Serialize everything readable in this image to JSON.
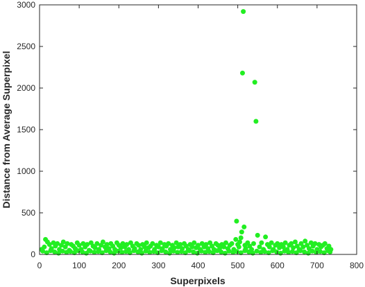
{
  "chart_data": {
    "type": "scatter",
    "xlabel": "Superpixels",
    "ylabel": "Distance from Average Superpixel",
    "xlim": [
      0,
      800
    ],
    "ylim": [
      0,
      3000
    ],
    "x_ticks": [
      "0",
      "100",
      "200",
      "300",
      "400",
      "500",
      "600",
      "700",
      "800"
    ],
    "y_ticks": [
      "0",
      "500",
      "1000",
      "1500",
      "2000",
      "2500",
      "3000"
    ],
    "marker_color": "#22ee22",
    "grid": false,
    "box": true,
    "series": [
      {
        "points": [
          [
            5,
            60
          ],
          [
            12,
            90
          ],
          [
            15,
            180
          ],
          [
            20,
            150
          ],
          [
            25,
            120
          ],
          [
            30,
            70
          ],
          [
            35,
            140
          ],
          [
            40,
            100
          ],
          [
            45,
            130
          ],
          [
            50,
            60
          ],
          [
            55,
            110
          ],
          [
            60,
            150
          ],
          [
            65,
            90
          ],
          [
            70,
            130
          ],
          [
            75,
            50
          ],
          [
            80,
            120
          ],
          [
            85,
            100
          ],
          [
            90,
            70
          ],
          [
            95,
            140
          ],
          [
            100,
            110
          ],
          [
            105,
            60
          ],
          [
            110,
            130
          ],
          [
            115,
            90
          ],
          [
            120,
            120
          ],
          [
            125,
            50
          ],
          [
            130,
            140
          ],
          [
            135,
            100
          ],
          [
            140,
            80
          ],
          [
            145,
            130
          ],
          [
            150,
            60
          ],
          [
            155,
            110
          ],
          [
            160,
            150
          ],
          [
            165,
            90
          ],
          [
            170,
            120
          ],
          [
            175,
            70
          ],
          [
            180,
            130
          ],
          [
            185,
            100
          ],
          [
            190,
            60
          ],
          [
            195,
            140
          ],
          [
            200,
            110
          ],
          [
            205,
            80
          ],
          [
            210,
            130
          ],
          [
            215,
            90
          ],
          [
            220,
            120
          ],
          [
            225,
            60
          ],
          [
            230,
            140
          ],
          [
            235,
            100
          ],
          [
            240,
            70
          ],
          [
            245,
            130
          ],
          [
            250,
            110
          ],
          [
            255,
            60
          ],
          [
            260,
            120
          ],
          [
            265,
            90
          ],
          [
            270,
            140
          ],
          [
            275,
            80
          ],
          [
            280,
            100
          ],
          [
            285,
            130
          ],
          [
            290,
            60
          ],
          [
            295,
            110
          ],
          [
            300,
            90
          ],
          [
            305,
            140
          ],
          [
            310,
            70
          ],
          [
            315,
            120
          ],
          [
            320,
            100
          ],
          [
            325,
            130
          ],
          [
            330,
            60
          ],
          [
            335,
            110
          ],
          [
            340,
            80
          ],
          [
            345,
            140
          ],
          [
            350,
            90
          ],
          [
            355,
            120
          ],
          [
            360,
            70
          ],
          [
            365,
            130
          ],
          [
            370,
            100
          ],
          [
            375,
            60
          ],
          [
            380,
            120
          ],
          [
            385,
            90
          ],
          [
            390,
            140
          ],
          [
            395,
            80
          ],
          [
            400,
            110
          ],
          [
            405,
            60
          ],
          [
            410,
            130
          ],
          [
            415,
            90
          ],
          [
            420,
            120
          ],
          [
            425,
            70
          ],
          [
            430,
            140
          ],
          [
            435,
            100
          ],
          [
            440,
            60
          ],
          [
            445,
            130
          ],
          [
            450,
            110
          ],
          [
            455,
            80
          ],
          [
            460,
            120
          ],
          [
            465,
            90
          ],
          [
            470,
            140
          ],
          [
            475,
            70
          ],
          [
            480,
            110
          ],
          [
            485,
            130
          ],
          [
            490,
            60
          ],
          [
            495,
            180
          ],
          [
            497,
            400
          ],
          [
            500,
            120
          ],
          [
            503,
            90
          ],
          [
            505,
            150
          ],
          [
            508,
            200
          ],
          [
            510,
            270
          ],
          [
            512,
            2180
          ],
          [
            514,
            2920
          ],
          [
            516,
            330
          ],
          [
            518,
            110
          ],
          [
            520,
            70
          ],
          [
            525,
            140
          ],
          [
            530,
            100
          ],
          [
            535,
            60
          ],
          [
            540,
            130
          ],
          [
            543,
            2070
          ],
          [
            546,
            1600
          ],
          [
            550,
            230
          ],
          [
            555,
            90
          ],
          [
            560,
            140
          ],
          [
            565,
            60
          ],
          [
            570,
            210
          ],
          [
            575,
            120
          ],
          [
            580,
            90
          ],
          [
            585,
            140
          ],
          [
            590,
            60
          ],
          [
            595,
            110
          ],
          [
            600,
            130
          ],
          [
            605,
            80
          ],
          [
            610,
            120
          ],
          [
            615,
            90
          ],
          [
            620,
            140
          ],
          [
            625,
            60
          ],
          [
            630,
            110
          ],
          [
            635,
            130
          ],
          [
            640,
            80
          ],
          [
            645,
            150
          ],
          [
            650,
            100
          ],
          [
            655,
            60
          ],
          [
            660,
            130
          ],
          [
            665,
            90
          ],
          [
            670,
            160
          ],
          [
            675,
            110
          ],
          [
            680,
            70
          ],
          [
            685,
            140
          ],
          [
            690,
            100
          ],
          [
            695,
            130
          ],
          [
            700,
            60
          ],
          [
            705,
            120
          ],
          [
            710,
            90
          ],
          [
            715,
            110
          ],
          [
            720,
            130
          ],
          [
            725,
            70
          ],
          [
            730,
            100
          ],
          [
            735,
            60
          ],
          [
            8,
            40
          ],
          [
            18,
            20
          ],
          [
            28,
            45
          ],
          [
            38,
            30
          ],
          [
            48,
            15
          ],
          [
            58,
            40
          ],
          [
            68,
            25
          ],
          [
            78,
            35
          ],
          [
            88,
            20
          ],
          [
            98,
            45
          ],
          [
            108,
            30
          ],
          [
            118,
            15
          ],
          [
            128,
            40
          ],
          [
            138,
            25
          ],
          [
            148,
            35
          ],
          [
            158,
            20
          ],
          [
            168,
            45
          ],
          [
            178,
            30
          ],
          [
            188,
            15
          ],
          [
            198,
            40
          ],
          [
            208,
            25
          ],
          [
            218,
            35
          ],
          [
            228,
            20
          ],
          [
            238,
            45
          ],
          [
            248,
            30
          ],
          [
            258,
            15
          ],
          [
            268,
            40
          ],
          [
            278,
            25
          ],
          [
            288,
            35
          ],
          [
            298,
            20
          ],
          [
            308,
            45
          ],
          [
            318,
            30
          ],
          [
            328,
            15
          ],
          [
            338,
            40
          ],
          [
            348,
            25
          ],
          [
            358,
            35
          ],
          [
            368,
            20
          ],
          [
            378,
            45
          ],
          [
            388,
            30
          ],
          [
            398,
            15
          ],
          [
            408,
            40
          ],
          [
            418,
            25
          ],
          [
            428,
            35
          ],
          [
            438,
            20
          ],
          [
            448,
            45
          ],
          [
            458,
            30
          ],
          [
            468,
            15
          ],
          [
            478,
            40
          ],
          [
            488,
            25
          ],
          [
            498,
            35
          ],
          [
            508,
            20
          ],
          [
            518,
            45
          ],
          [
            528,
            30
          ],
          [
            538,
            15
          ],
          [
            548,
            40
          ],
          [
            558,
            25
          ],
          [
            568,
            35
          ],
          [
            578,
            20
          ],
          [
            588,
            45
          ],
          [
            598,
            30
          ],
          [
            608,
            15
          ],
          [
            618,
            40
          ],
          [
            628,
            25
          ],
          [
            638,
            35
          ],
          [
            648,
            20
          ],
          [
            658,
            45
          ],
          [
            668,
            30
          ],
          [
            678,
            15
          ],
          [
            688,
            40
          ],
          [
            698,
            25
          ],
          [
            708,
            35
          ],
          [
            718,
            20
          ],
          [
            728,
            45
          ],
          [
            733,
            30
          ]
        ]
      }
    ]
  }
}
